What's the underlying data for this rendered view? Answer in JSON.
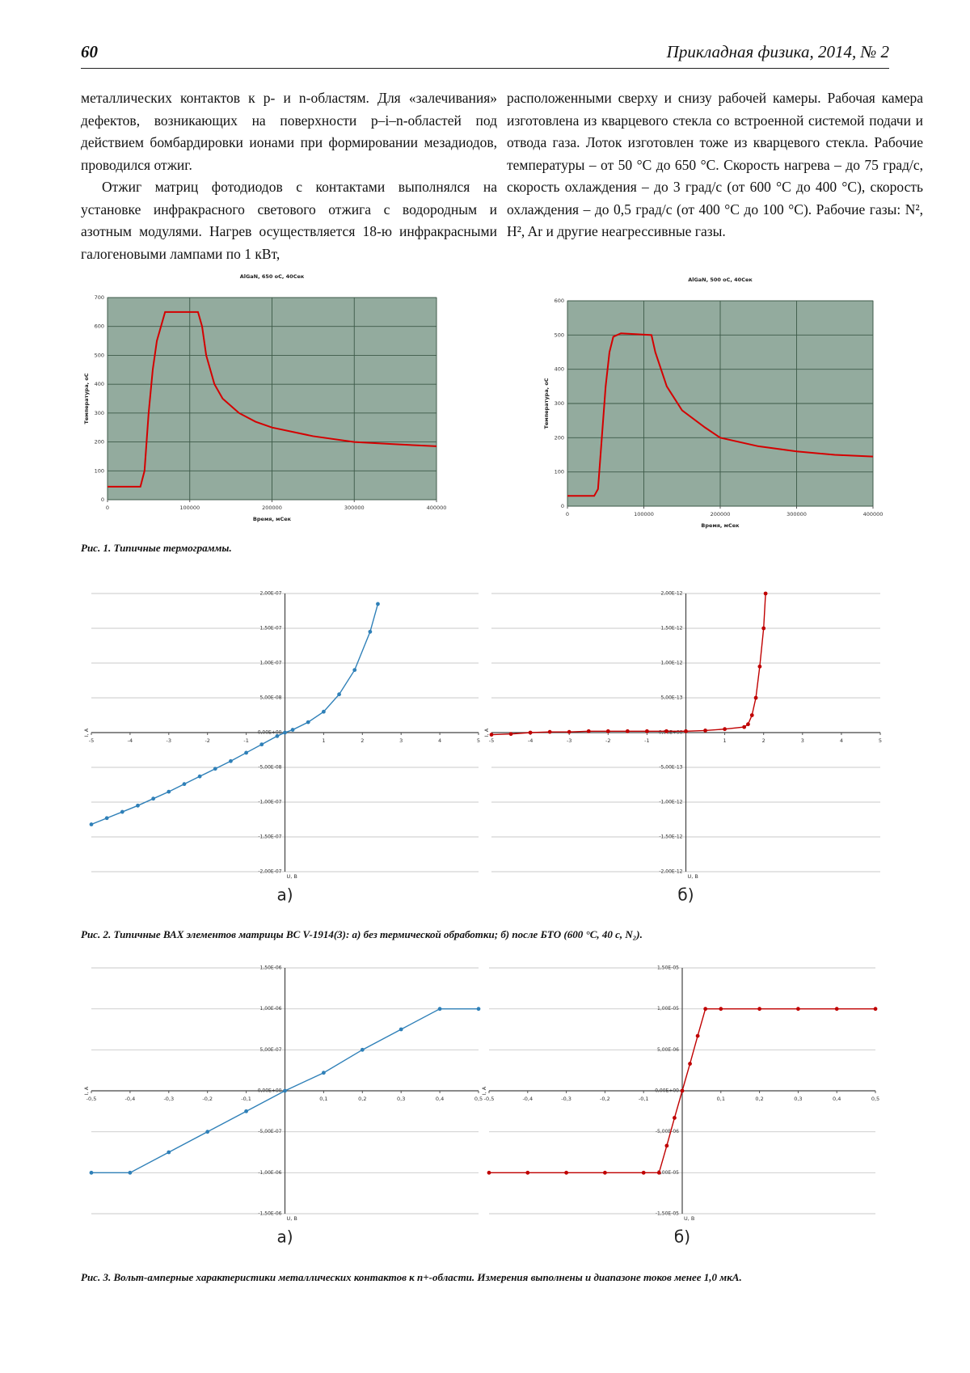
{
  "header": {
    "page": "60",
    "journal": "Прикладная физика, 2014, № 2"
  },
  "columns": [
    [
      "металлических контактов к p- и n-областям. Для «залечивания» дефектов, возникающих на поверхности p–i–n-областей под действием бомбардировки ионами при формировании мезадиодов, проводился отжиг.",
      "Отжиг матриц фотодиодов с контактами выполнялся на установке инфракрасного светового отжига с водородным и азотным модулями. Нагрев осуществляется 18-ю инфракрасными галогеновыми лампами по 1 кВт,"
    ],
    [
      "расположенными сверху и снизу рабочей камеры. Рабочая камера изготовлена из кварцевого стекла со встроенной системой подачи и отвода газа. Лоток изготовлен тоже из кварцевого стекла. Рабочие температуры – от 50 °С до 650 °С. Скорость нагрева – до 75 град/с, скорость охлаждения – до 3 град/с (от 600 °С до 400 °С), скорость охлаждения – до 0,5 град/с (от 400 °С до 100 °С). Рабочие газы: N², H², Ar и другие неагрессивные газы."
    ]
  ],
  "figures": [
    {
      "caption": "Рис. 1. Типичные термограммы."
    },
    {
      "caption": "Рис. 2. Типичные ВАХ элементов матрицы BC V-1914(3): а) без термической обработки; б) после БТО (600 °С, 40 с, N₂)."
    },
    {
      "caption": "Рис. 3. Вольт-амперные характеристики металлических контактов к n+-области. Измерения выполнены и диапазоне токов менее 1,0 мкА."
    }
  ],
  "chart_data": [
    {
      "type": "line",
      "title": "AlGaN, 650 oC, 40Сек",
      "xlabel": "Время, мСек",
      "ylabel": "Температура, оС",
      "x": [
        0,
        40000,
        45000,
        50000,
        55000,
        60000,
        70000,
        110000,
        115000,
        120000,
        130000,
        140000,
        160000,
        180000,
        200000,
        250000,
        300000,
        350000,
        400000
      ],
      "series": [
        {
          "color": "#d40000",
          "values": [
            45,
            45,
            100,
            300,
            450,
            550,
            650,
            650,
            600,
            500,
            400,
            350,
            300,
            270,
            250,
            220,
            200,
            192,
            185
          ]
        }
      ],
      "xlim": [
        0,
        400000
      ],
      "xticks": [
        0,
        100000,
        200000,
        300000,
        400000
      ],
      "ylim": [
        0,
        700
      ],
      "yticks": [
        0,
        100,
        200,
        300,
        400,
        500,
        600,
        700
      ],
      "grid": true,
      "background": "#93ab9e"
    },
    {
      "type": "line",
      "title": "AlGaN, 500 oC, 40Сек",
      "xlabel": "Время, мСек",
      "ylabel": "Температура, оС",
      "x": [
        0,
        35000,
        40000,
        45000,
        50000,
        55000,
        60000,
        70000,
        110000,
        115000,
        130000,
        150000,
        180000,
        200000,
        250000,
        300000,
        350000,
        400000
      ],
      "series": [
        {
          "color": "#d40000",
          "values": [
            30,
            30,
            50,
            200,
            350,
            450,
            495,
            505,
            500,
            450,
            350,
            280,
            230,
            200,
            175,
            160,
            150,
            145
          ]
        }
      ],
      "xlim": [
        0,
        400000
      ],
      "xticks": [
        0,
        100000,
        200000,
        300000,
        400000
      ],
      "ylim": [
        0,
        600
      ],
      "yticks": [
        0,
        100,
        200,
        300,
        400,
        500,
        600
      ],
      "grid": true,
      "background": "#93ab9e"
    },
    {
      "type": "line",
      "label": "а)",
      "xlabel": "U, В",
      "ylabel": "I, A",
      "axes": "origin",
      "markers": true,
      "x": [
        -5,
        -4.6,
        -4.2,
        -3.8,
        -3.4,
        -3,
        -2.6,
        -2.2,
        -1.8,
        -1.4,
        -1,
        -0.6,
        -0.2,
        0,
        0.2,
        0.6,
        1,
        1.4,
        1.8,
        2.2,
        2.4
      ],
      "series": [
        {
          "color": "#2f80b8",
          "values": [
            -1.32e-07,
            -1.23e-07,
            -1.14e-07,
            -1.05e-07,
            -9.5e-08,
            -8.5e-08,
            -7.4e-08,
            -6.3e-08,
            -5.2e-08,
            -4.1e-08,
            -2.9e-08,
            -1.7e-08,
            -5e-09,
            0,
            4e-09,
            1.5e-08,
            3e-08,
            5.5e-08,
            9e-08,
            1.45e-07,
            1.85e-07
          ]
        }
      ],
      "xlim": [
        -5,
        5
      ],
      "xticks": [
        -5,
        -4,
        -3,
        -2,
        -1,
        1,
        2,
        3,
        4,
        5
      ],
      "ylim": [
        -2e-07,
        2e-07
      ],
      "yticks": [
        {
          "value": -2e-07,
          "label": "-2,00E-07"
        },
        {
          "value": -1.5e-07,
          "label": "-1,50E-07"
        },
        {
          "value": -1e-07,
          "label": "-1,00E-07"
        },
        {
          "value": -5e-08,
          "label": "-5,00E-08"
        },
        {
          "value": 0,
          "label": "0,00E+00"
        },
        {
          "value": 5e-08,
          "label": "5,00E-08"
        },
        {
          "value": 1e-07,
          "label": "1,00E-07"
        },
        {
          "value": 1.5e-07,
          "label": "1,50E-07"
        },
        {
          "value": 2e-07,
          "label": "2,00E-07"
        }
      ],
      "grid": true
    },
    {
      "type": "line",
      "label": "б)",
      "xlabel": "U, В",
      "ylabel": "I, A",
      "axes": "origin",
      "markers": true,
      "x": [
        -5,
        -4.5,
        -4,
        -3.5,
        -3,
        -2.5,
        -2,
        -1.5,
        -1,
        -0.5,
        0,
        0.5,
        1,
        1.5,
        1.6,
        1.7,
        1.8,
        1.9,
        2,
        2.05
      ],
      "series": [
        {
          "color": "#c00000",
          "values": [
            -3e-14,
            -2e-14,
            0,
            1e-14,
            1e-14,
            2e-14,
            2e-14,
            2e-14,
            2e-14,
            2e-14,
            2e-14,
            3e-14,
            5e-14,
            8e-14,
            1.2e-13,
            2.5e-13,
            5e-13,
            9.5e-13,
            1.5e-12,
            2e-12
          ]
        }
      ],
      "xlim": [
        -5,
        5
      ],
      "xticks": [
        -5,
        -4,
        -3,
        -2,
        -1,
        1,
        2,
        3,
        4,
        5
      ],
      "ylim": [
        -2e-12,
        2e-12
      ],
      "yticks": [
        {
          "value": -2e-12,
          "label": "-2,00E-12"
        },
        {
          "value": -1.5e-12,
          "label": "-1,50E-12"
        },
        {
          "value": -1e-12,
          "label": "-1,00E-12"
        },
        {
          "value": -5e-13,
          "label": "-5,00E-13"
        },
        {
          "value": 0,
          "label": "0,00E+00"
        },
        {
          "value": 5e-13,
          "label": "5,00E-13"
        },
        {
          "value": 1e-12,
          "label": "1,00E-12"
        },
        {
          "value": 1.5e-12,
          "label": "1,50E-12"
        },
        {
          "value": 2e-12,
          "label": "2,00E-12"
        }
      ],
      "grid": true
    },
    {
      "type": "line",
      "label": "а)",
      "xlabel": "U, В",
      "ylabel": "I, A",
      "axes": "origin",
      "markers": true,
      "x": [
        -0.5,
        -0.4,
        -0.3,
        -0.2,
        -0.1,
        0,
        0.1,
        0.2,
        0.3,
        0.4,
        0.5
      ],
      "series": [
        {
          "color": "#2f80b8",
          "values": [
            -1e-06,
            -1e-06,
            -7.5e-07,
            -5e-07,
            -2.5e-07,
            0,
            2.2e-07,
            5e-07,
            7.5e-07,
            1e-06,
            1e-06
          ]
        }
      ],
      "xlim": [
        -0.5,
        0.5
      ],
      "xticks": [
        {
          "value": -0.5,
          "label": "-0,5"
        },
        {
          "value": -0.4,
          "label": "-0,4"
        },
        {
          "value": -0.3,
          "label": "-0,3"
        },
        {
          "value": -0.2,
          "label": "-0,2"
        },
        {
          "value": -0.1,
          "label": "-0,1"
        },
        {
          "value": 0.1,
          "label": "0,1"
        },
        {
          "value": 0.2,
          "label": "0,2"
        },
        {
          "value": 0.3,
          "label": "0,3"
        },
        {
          "value": 0.4,
          "label": "0,4"
        },
        {
          "value": 0.5,
          "label": "0,5"
        }
      ],
      "ylim": [
        -1.5e-06,
        1.5e-06
      ],
      "yticks": [
        {
          "value": -1.5e-06,
          "label": "-1,50E-06"
        },
        {
          "value": -1e-06,
          "label": "-1,00E-06"
        },
        {
          "value": -5e-07,
          "label": "-5,00E-07"
        },
        {
          "value": 0,
          "label": "0,00E+00"
        },
        {
          "value": 5e-07,
          "label": "5,00E-07"
        },
        {
          "value": 1e-06,
          "label": "1,00E-06"
        },
        {
          "value": 1.5e-06,
          "label": "1,50E-06"
        }
      ],
      "grid": true
    },
    {
      "type": "line",
      "label": "б)",
      "xlabel": "U, В",
      "ylabel": "I, A",
      "axes": "origin",
      "markers": true,
      "x": [
        -0.5,
        -0.4,
        -0.3,
        -0.2,
        -0.1,
        -0.06,
        -0.04,
        -0.02,
        0,
        0.02,
        0.04,
        0.06,
        0.1,
        0.2,
        0.3,
        0.4,
        0.5
      ],
      "series": [
        {
          "color": "#c00000",
          "values": [
            -1e-05,
            -1e-05,
            -1e-05,
            -1e-05,
            -1e-05,
            -1e-05,
            -6.7e-06,
            -3.3e-06,
            0,
            3.3e-06,
            6.7e-06,
            1e-05,
            1e-05,
            1e-05,
            1e-05,
            1e-05,
            1e-05
          ]
        }
      ],
      "xlim": [
        -0.5,
        0.5
      ],
      "xticks": [
        {
          "value": -0.5,
          "label": "-0,5"
        },
        {
          "value": -0.4,
          "label": "-0,4"
        },
        {
          "value": -0.3,
          "label": "-0,3"
        },
        {
          "value": -0.2,
          "label": "-0,2"
        },
        {
          "value": -0.1,
          "label": "-0,1"
        },
        {
          "value": 0.1,
          "label": "0,1"
        },
        {
          "value": 0.2,
          "label": "0,2"
        },
        {
          "value": 0.3,
          "label": "0,3"
        },
        {
          "value": 0.4,
          "label": "0,4"
        },
        {
          "value": 0.5,
          "label": "0,5"
        }
      ],
      "ylim": [
        -1.5e-05,
        1.5e-05
      ],
      "yticks": [
        {
          "value": -1.5e-05,
          "label": "-1,50E-05"
        },
        {
          "value": -1e-05,
          "label": "-1,00E-05"
        },
        {
          "value": -5e-06,
          "label": "-5,00E-06"
        },
        {
          "value": 0,
          "label": "0,00E+00"
        },
        {
          "value": 5e-06,
          "label": "5,00E-06"
        },
        {
          "value": 1e-05,
          "label": "1,00E-05"
        },
        {
          "value": 1.5e-05,
          "label": "1,50E-05"
        }
      ],
      "grid": true
    }
  ]
}
